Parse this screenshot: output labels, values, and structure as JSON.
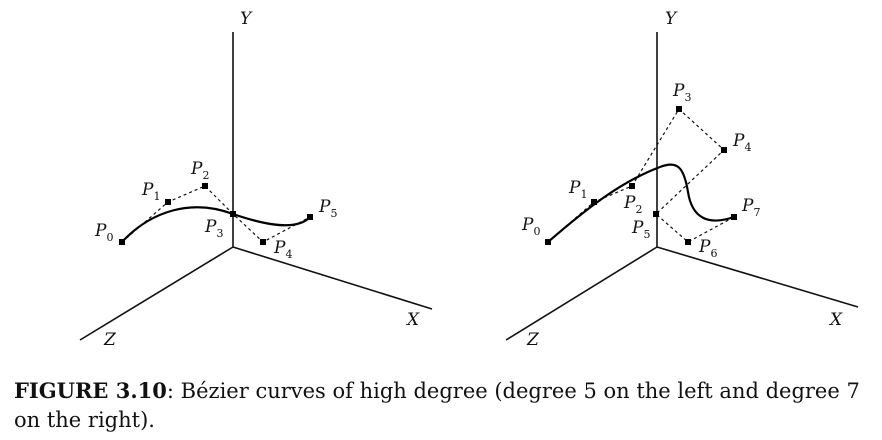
{
  "caption": {
    "label": "FIGURE 3.10",
    "text": ": Bézier curves of high degree (degree 5 on the left and degree 7 on the right)."
  },
  "axes": {
    "x": "X",
    "y": "Y",
    "z": "Z"
  },
  "left_diagram": {
    "points": [
      {
        "base": "P",
        "sub": "0"
      },
      {
        "base": "P",
        "sub": "1"
      },
      {
        "base": "P",
        "sub": "2"
      },
      {
        "base": "P",
        "sub": "3"
      },
      {
        "base": "P",
        "sub": "4"
      },
      {
        "base": "P",
        "sub": "5"
      }
    ]
  },
  "right_diagram": {
    "points": [
      {
        "base": "P",
        "sub": "0"
      },
      {
        "base": "P",
        "sub": "1"
      },
      {
        "base": "P",
        "sub": "2"
      },
      {
        "base": "P",
        "sub": "3"
      },
      {
        "base": "P",
        "sub": "4"
      },
      {
        "base": "P",
        "sub": "5"
      },
      {
        "base": "P",
        "sub": "6"
      },
      {
        "base": "P",
        "sub": "7"
      }
    ]
  }
}
